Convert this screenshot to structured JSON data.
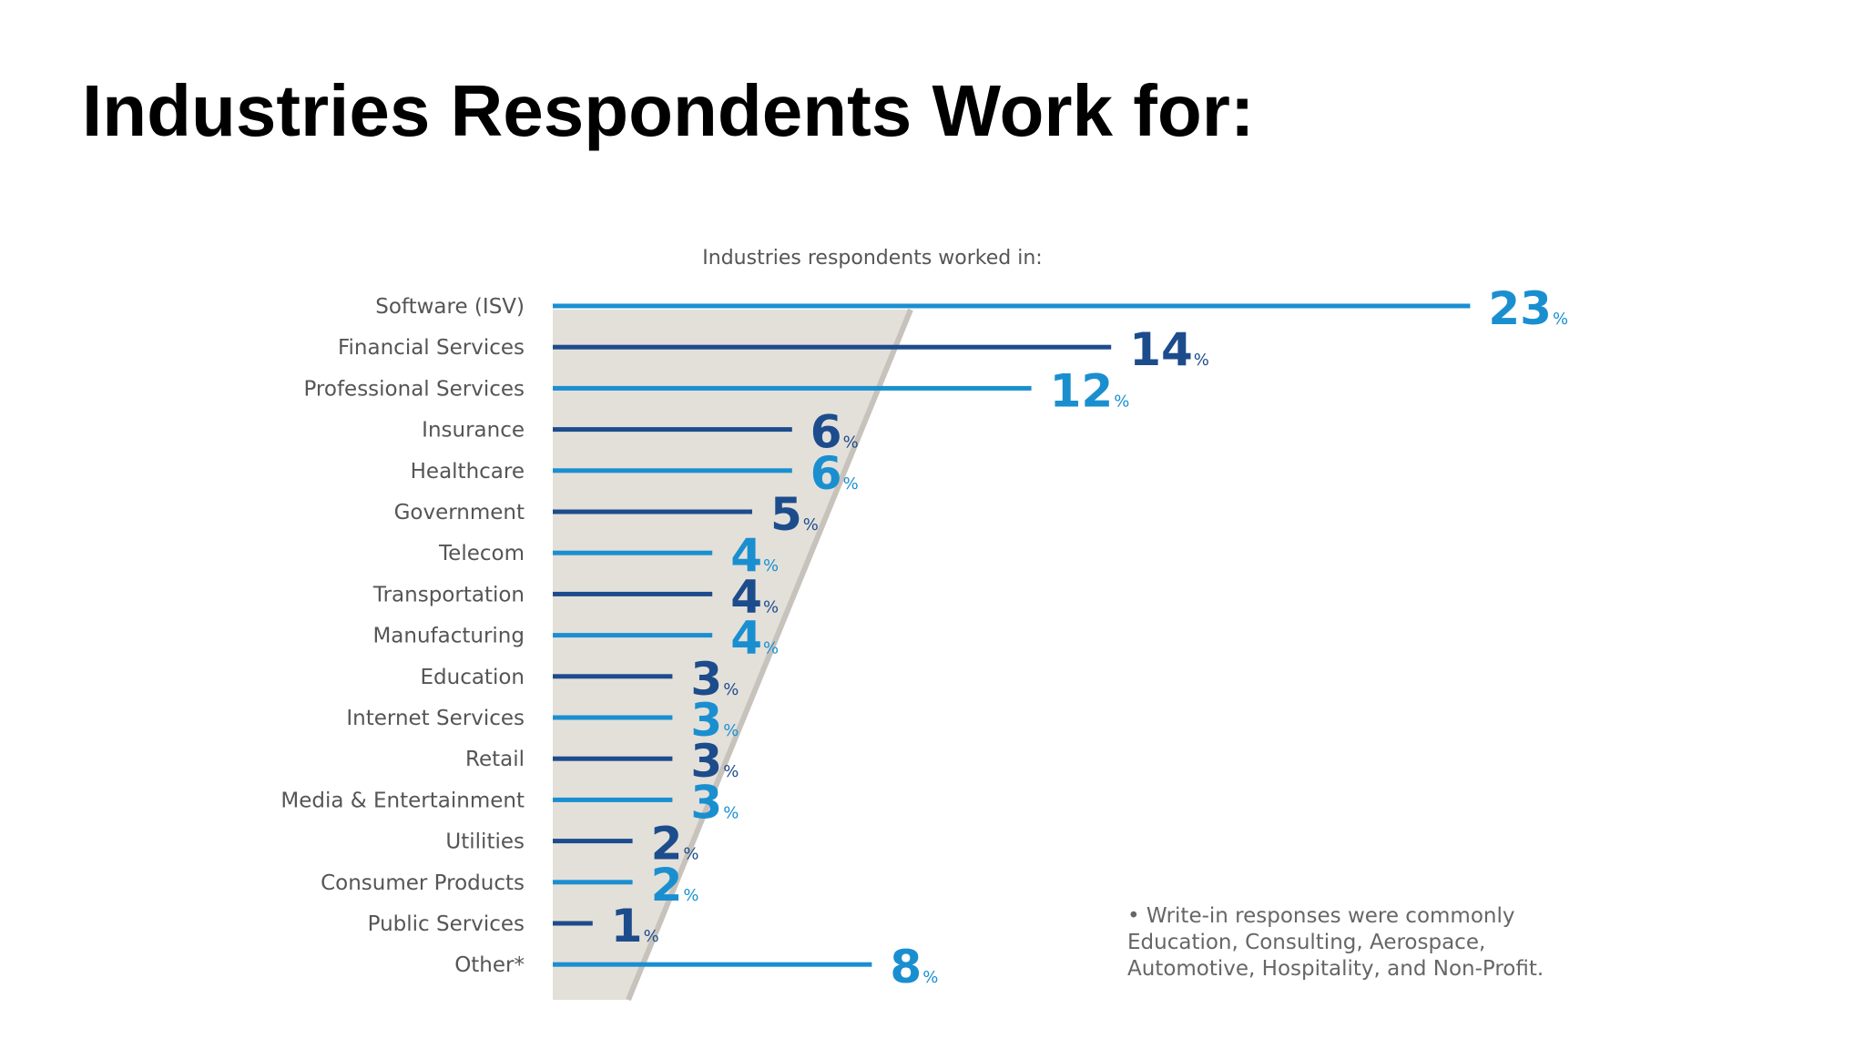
{
  "slide": {
    "title": "Industries Respondents Work for:"
  },
  "footnote": "• Write-in responses were commonly Education, Consulting, Aerospace, Automotive, Hospitality, and Non-Profit.",
  "colors": {
    "light_blue": "#1a8fd0",
    "dark_blue": "#1d4c8c",
    "wedge": "#e3e0da",
    "wedge_edge": "#c7c2bb",
    "label": "#555555"
  },
  "chart_data": {
    "type": "bar",
    "orientation": "horizontal",
    "title": "Industries respondents worked in:",
    "unit": "%",
    "categories": [
      "Software (ISV)",
      "Financial Services",
      "Professional Services",
      "Insurance",
      "Healthcare",
      "Government",
      "Telecom",
      "Transportation",
      "Manufacturing",
      "Education",
      "Internet Services",
      "Retail",
      "Media & Entertainment",
      "Utilities",
      "Consumer Products",
      "Public Services",
      "Other*"
    ],
    "values": [
      23,
      14,
      12,
      6,
      6,
      5,
      4,
      4,
      4,
      3,
      3,
      3,
      3,
      2,
      2,
      1,
      8
    ],
    "bar_colors": [
      "light",
      "dark",
      "light",
      "dark",
      "light",
      "dark",
      "light",
      "dark",
      "light",
      "dark",
      "light",
      "dark",
      "light",
      "dark",
      "light",
      "dark",
      "light"
    ],
    "grid": false,
    "legend": "none"
  }
}
